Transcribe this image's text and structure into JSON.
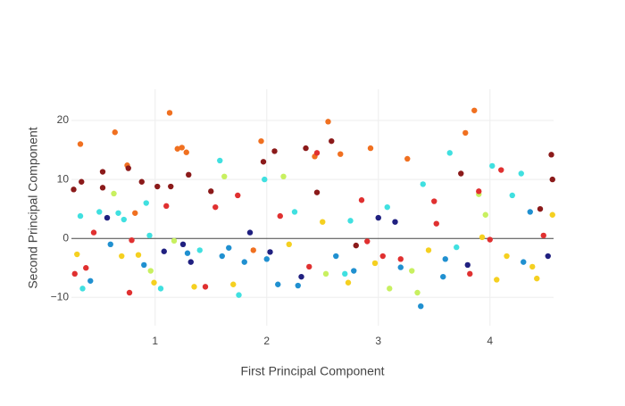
{
  "chart_data": {
    "type": "scatter",
    "x_label": "First Principal Component",
    "y_label": "Second Principal Component",
    "xlim": [
      0.25,
      4.57
    ],
    "ylim": [
      -14.8,
      25.3
    ],
    "xticks": [
      1,
      2,
      3,
      4
    ],
    "yticks": [
      {
        "value": -10,
        "label": "−10"
      },
      0,
      10,
      20
    ],
    "grid": true,
    "x": [
      0.33,
      0.27,
      0.34,
      0.33,
      0.38,
      0.3,
      0.28,
      0.35,
      0.42,
      0.45,
      0.5,
      0.53,
      0.53,
      0.57,
      0.6,
      0.64,
      0.63,
      0.67,
      0.7,
      0.72,
      0.75,
      0.76,
      0.77,
      0.79,
      0.82,
      0.85,
      0.88,
      0.9,
      0.92,
      0.96,
      0.99,
      1.02,
      1.05,
      1.08,
      1.1,
      1.13,
      1.14,
      1.17,
      1.2,
      1.24,
      1.28,
      1.3,
      1.29,
      1.32,
      1.35,
      1.4,
      1.45,
      1.5,
      1.54,
      1.58,
      1.62,
      1.66,
      1.7,
      1.74,
      1.75,
      1.8,
      1.85,
      1.88,
      1.95,
      1.97,
      1.98,
      2.03,
      2.07,
      2.1,
      2.12,
      2.15,
      2.2,
      2.25,
      2.28,
      2.31,
      2.35,
      2.38,
      2.43,
      2.45,
      2.45,
      2.5,
      2.53,
      2.55,
      2.58,
      2.62,
      2.66,
      2.7,
      2.73,
      2.75,
      2.78,
      2.8,
      2.85,
      2.9,
      2.93,
      2.97,
      3.0,
      3.04,
      3.08,
      3.1,
      3.15,
      3.2,
      3.26,
      3.3,
      3.35,
      3.38,
      3.4,
      3.45,
      3.5,
      3.52,
      3.58,
      3.64,
      3.7,
      3.74,
      3.78,
      3.8,
      3.82,
      3.86,
      3.9,
      3.9,
      3.93,
      3.96,
      4.0,
      4.02,
      4.06,
      4.1,
      4.15,
      4.2,
      4.28,
      4.3,
      4.36,
      4.38,
      4.42,
      4.45,
      4.48,
      4.52,
      4.55,
      4.56,
      4.56,
      1.6,
      0.95,
      1.25,
      2.0,
      3.6,
      3.2
    ],
    "values": [
      16,
      8.3,
      9.6,
      3.8,
      -5,
      -2.7,
      -6,
      -8.5,
      -7.2,
      1,
      4.5,
      11.3,
      8.6,
      3.5,
      -1,
      18,
      7.6,
      4.3,
      -3,
      3.2,
      12.4,
      11.9,
      -9.2,
      -0.3,
      4.3,
      -2.8,
      9.6,
      -4.5,
      6,
      -5.5,
      -7.5,
      8.8,
      -8.5,
      -2.2,
      5.5,
      21.3,
      8.8,
      -0.4,
      15.2,
      15.4,
      14.6,
      10.8,
      -2.5,
      -4,
      -8.2,
      -2,
      -8.2,
      8,
      5.3,
      13.2,
      10.5,
      -1.6,
      -7.8,
      7.3,
      -9.6,
      -4,
      1,
      -2,
      16.5,
      13,
      10,
      -2.3,
      14.8,
      -7.8,
      3.8,
      10.5,
      -1,
      4.5,
      -8,
      -6.5,
      15.3,
      -4.8,
      13.9,
      14.5,
      7.8,
      2.8,
      -6,
      19.8,
      16.5,
      -3,
      14.3,
      -6,
      -7.5,
      3,
      -5.5,
      -1.2,
      6.5,
      -0.5,
      15.3,
      -4.2,
      3.5,
      -3,
      5.3,
      -8.5,
      2.8,
      -4.9,
      13.5,
      -5.5,
      -9.2,
      -11.5,
      9.2,
      -2,
      6.3,
      2.5,
      -6.5,
      14.5,
      -1.5,
      11,
      17.9,
      -4.5,
      -6,
      21.7,
      7.5,
      8,
      0.2,
      4,
      -0.2,
      12.3,
      -7,
      11.6,
      -3,
      7.3,
      11,
      -4,
      4.5,
      -4.8,
      -6.8,
      5,
      0.5,
      -3,
      14.2,
      10,
      4,
      -3,
      0.5,
      -1,
      -3.5,
      -3.5,
      -3.5
    ],
    "colors": [
      "#f07020",
      "#8b1a1a",
      "#8b1a1a",
      "#40e0e0",
      "#e03030",
      "#f5d020",
      "#e03030",
      "#40e0e0",
      "#2090d0",
      "#e03030",
      "#40e0e0",
      "#8b1a1a",
      "#8b1a1a",
      "#202080",
      "#2090d0",
      "#f07020",
      "#c8f060",
      "#40e0e0",
      "#f5d020",
      "#40e0e0",
      "#f07020",
      "#8b1a1a",
      "#e03030",
      "#e03030",
      "#f07020",
      "#f5d020",
      "#8b1a1a",
      "#2090d0",
      "#40e0e0",
      "#c8f060",
      "#f5d020",
      "#8b1a1a",
      "#40e0e0",
      "#202080",
      "#e03030",
      "#f07020",
      "#8b1a1a",
      "#c8f060",
      "#f07020",
      "#f07020",
      "#f07020",
      "#8b1a1a",
      "#2090d0",
      "#202080",
      "#f5d020",
      "#40e0e0",
      "#e03030",
      "#8b1a1a",
      "#e03030",
      "#40e0e0",
      "#c8f060",
      "#2090d0",
      "#f5d020",
      "#e03030",
      "#40e0e0",
      "#2090d0",
      "#202080",
      "#f07020",
      "#f07020",
      "#8b1a1a",
      "#40e0e0",
      "#202080",
      "#8b1a1a",
      "#2090d0",
      "#e03030",
      "#c8f060",
      "#f5d020",
      "#40e0e0",
      "#2090d0",
      "#202080",
      "#8b1a1a",
      "#e03030",
      "#f07020",
      "#e03030",
      "#8b1a1a",
      "#f5d020",
      "#c8f060",
      "#f07020",
      "#8b1a1a",
      "#2090d0",
      "#f07020",
      "#40e0e0",
      "#f5d020",
      "#40e0e0",
      "#2090d0",
      "#8b1a1a",
      "#e03030",
      "#e03030",
      "#f07020",
      "#f5d020",
      "#202080",
      "#e03030",
      "#40e0e0",
      "#c8f060",
      "#202080",
      "#2090d0",
      "#f07020",
      "#c8f060",
      "#c8f060",
      "#2090d0",
      "#40e0e0",
      "#f5d020",
      "#e03030",
      "#e03030",
      "#2090d0",
      "#40e0e0",
      "#40e0e0",
      "#8b1a1a",
      "#f07020",
      "#202080",
      "#e03030",
      "#f07020",
      "#c8f060",
      "#e03030",
      "#f5d020",
      "#c8f060",
      "#e03030",
      "#40e0e0",
      "#f5d020",
      "#e03030",
      "#f5d020",
      "#40e0e0",
      "#40e0e0",
      "#2090d0",
      "#2090d0",
      "#f5d020",
      "#f5d020",
      "#8b1a1a",
      "#e03030",
      "#202080",
      "#8b1a1a",
      "#8b1a1a",
      "#f5d020",
      "#2090d0",
      "#40e0e0",
      "#202080",
      "#2090d0",
      "#2090d0",
      "#e03030"
    ]
  }
}
